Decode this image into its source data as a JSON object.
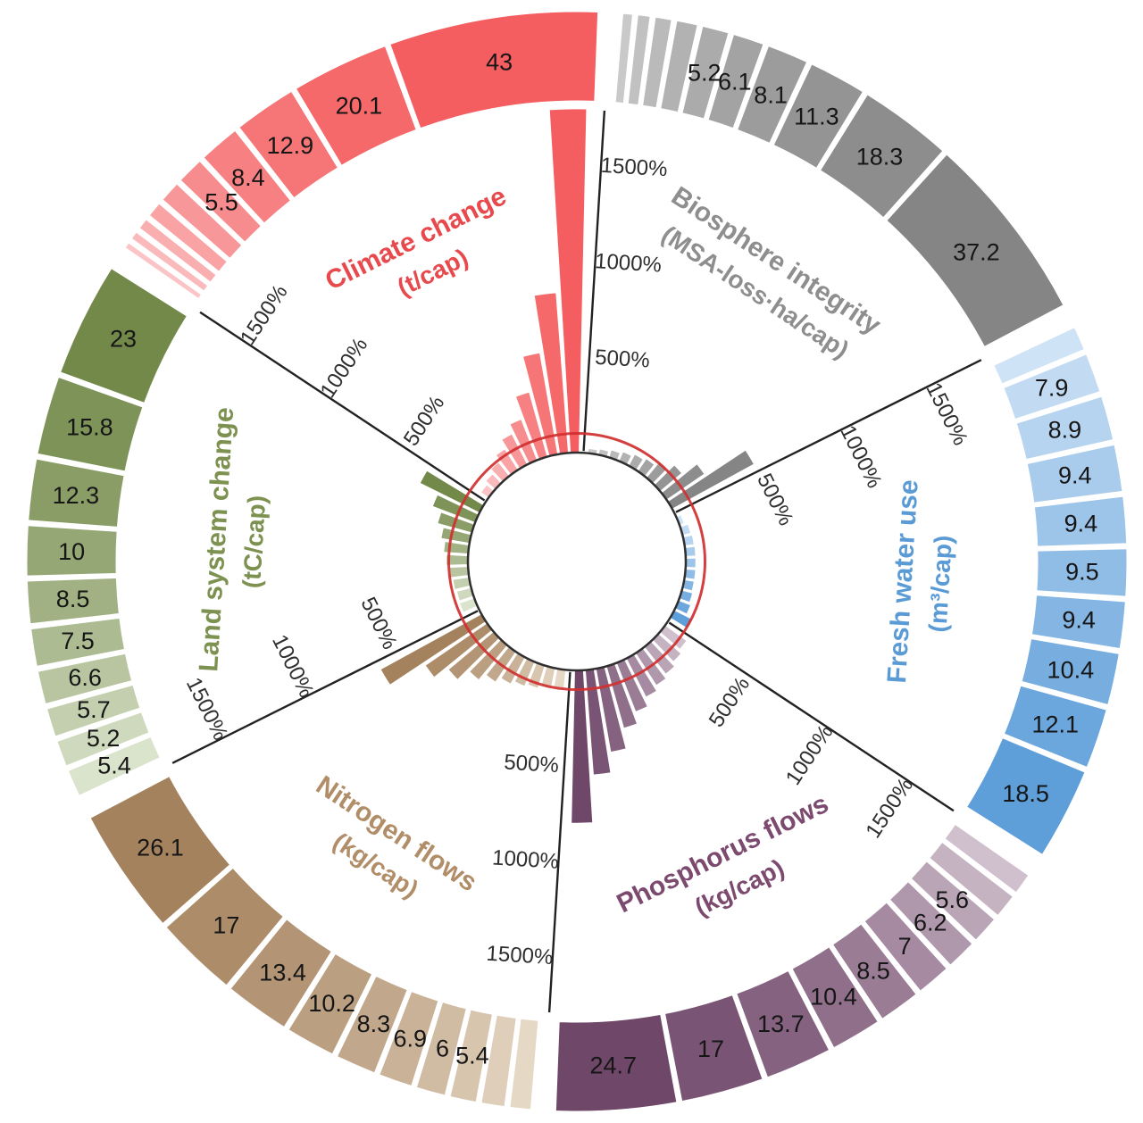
{
  "chart_data": {
    "type": "bar",
    "subtype": "polar-radial-bars-with-outer-ring",
    "description": "Six-sector circular chart of per-capita environmental footprints by decile; outer ring segments show per-decile values (arc length proportional to value), inner radial bars show the same deciles as percent of the per-capita boundary.",
    "axis": {
      "tick_values": [
        500,
        1000,
        1500
      ],
      "tick_labels": [
        "500%",
        "1000%",
        "1500%"
      ],
      "reference_circle_pct": 100,
      "reference_circle_color": "#d03030",
      "base_circle_color": "#2f2f2f",
      "grid": "off",
      "rmax_pct": 1800
    },
    "sectors": [
      {
        "name": "Biosphere integrity",
        "unit": "(MSA-loss·ha/cap)",
        "start_angle": 3.5,
        "end_angle": 63.5,
        "title_color": "#8e8e8e",
        "color_light": "#c9c9c9",
        "color_dark": "#858585",
        "boundary_value": 7.65,
        "decile_values": [
          1.9,
          2.4,
          3.2,
          4.1,
          5.2,
          6.1,
          8.1,
          11.3,
          18.3,
          37.2
        ],
        "decile_labels": [
          null,
          null,
          null,
          null,
          "5.2",
          "6.1",
          "8.1",
          "11.3",
          "18.3",
          "37.2"
        ]
      },
      {
        "name": "Fresh water use",
        "unit": "(m³/cap)",
        "start_angle": 63.5,
        "end_angle": 123.5,
        "title_color": "#5b9bd5",
        "color_light": "#cfe3f6",
        "color_dark": "#5e9ed9",
        "boundary_value": 17.8,
        "decile_values": [
          4.8,
          7.9,
          8.9,
          9.4,
          9.4,
          9.5,
          9.4,
          10.4,
          12.1,
          18.5
        ],
        "decile_labels": [
          null,
          "7.9",
          "8.9",
          "9.4",
          "9.4",
          "9.5",
          "9.4",
          "10.4",
          "12.1",
          "18.5"
        ]
      },
      {
        "name": "Phosphorus flows",
        "unit": "(kg/cap)",
        "start_angle": 123.5,
        "end_angle": 183.5,
        "title_color": "#7d4a6f",
        "color_light": "#d0c0cd",
        "color_dark": "#6f4769",
        "boundary_value": 3.1,
        "decile_values": [
          4.3,
          4.9,
          5.6,
          6.2,
          7,
          8.5,
          10.4,
          13.7,
          17,
          24.7
        ],
        "decile_labels": [
          null,
          null,
          "5.6",
          "6.2",
          "7",
          "8.5",
          "10.4",
          "13.7",
          "17",
          "24.7"
        ]
      },
      {
        "name": "Nitrogen flows",
        "unit": "(kg/cap)",
        "start_angle": 183.5,
        "end_angle": 243.5,
        "title_color": "#b18d68",
        "color_light": "#e5d8c5",
        "color_dark": "#a5825e",
        "boundary_value": 4.35,
        "decile_values": [
          4.3,
          4.8,
          5.4,
          6,
          6.9,
          8.3,
          10.2,
          13.4,
          17,
          26.1
        ],
        "decile_labels": [
          null,
          null,
          "5.4",
          "6",
          "6.9",
          "8.3",
          "10.2",
          "13.4",
          "17",
          "26.1"
        ]
      },
      {
        "name": "Land system change",
        "unit": "(tC/cap)",
        "start_angle": 243.5,
        "end_angle": 303.5,
        "title_color": "#7d9150",
        "color_light": "#dae3cb",
        "color_dark": "#73894a",
        "boundary_value": 6.63,
        "decile_values": [
          5.4,
          5.2,
          5.7,
          6.6,
          7.5,
          8.5,
          10,
          12.3,
          15.8,
          23
        ],
        "decile_labels": [
          "5.4",
          "5.2",
          "5.7",
          "6.6",
          "7.5",
          "8.5",
          "10",
          "12.3",
          "15.8",
          "23"
        ]
      },
      {
        "name": "Climate change",
        "unit": "(t/cap)",
        "start_angle": 303.5,
        "end_angle": 363.5,
        "title_color": "#e8494d",
        "color_light": "#fbc5c7",
        "color_dark": "#f45e60",
        "boundary_value": 2.4,
        "decile_values": [
          1.2,
          1.6,
          2.2,
          3.1,
          4.3,
          5.5,
          8.4,
          12.9,
          20.1,
          43
        ],
        "decile_labels": [
          null,
          null,
          null,
          null,
          null,
          "5.5",
          "8.4",
          "12.9",
          "20.1",
          "43"
        ]
      }
    ]
  }
}
